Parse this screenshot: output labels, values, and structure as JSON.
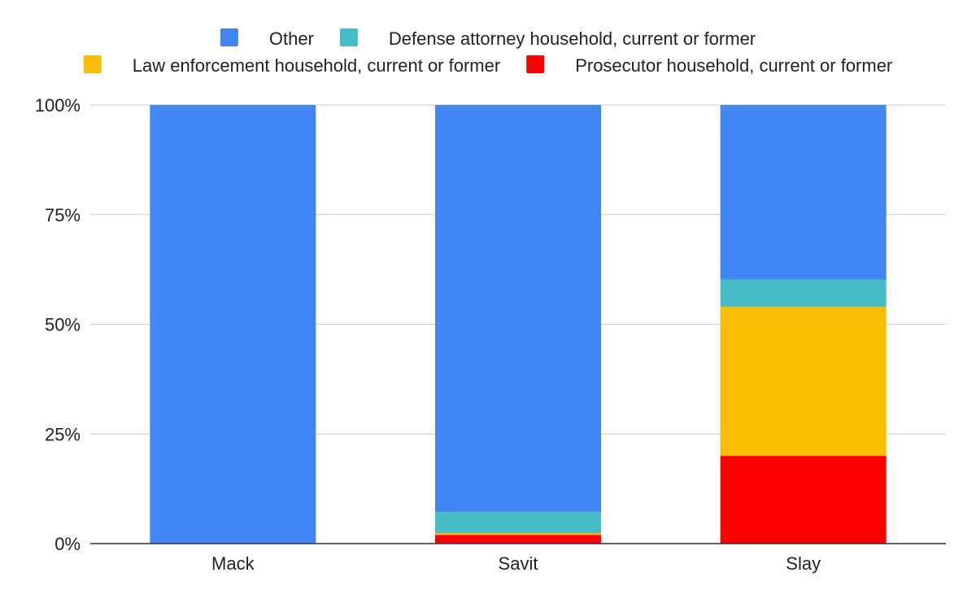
{
  "chart_data": {
    "type": "bar",
    "stacked": true,
    "normalized": true,
    "categories": [
      "Mack",
      "Savit",
      "Slay"
    ],
    "series": [
      {
        "name": "Prosecutor household, current or former",
        "color": "#ff0000",
        "values": [
          0,
          2.0,
          20.0
        ]
      },
      {
        "name": "Law enforcement household, current or former",
        "color": "#fbbc04",
        "values": [
          0,
          0.4,
          34.0
        ]
      },
      {
        "name": "Defense attorney household, current or former",
        "color": "#46bdc6",
        "values": [
          0,
          4.8,
          6.2
        ]
      },
      {
        "name": "Other",
        "color": "#4285f4",
        "values": [
          100,
          92.8,
          39.8
        ]
      }
    ],
    "legend_order": [
      "Other",
      "Defense attorney household, current or former",
      "Law enforcement household, current or former",
      "Prosecutor household, current or former"
    ],
    "y_ticks": [
      "0%",
      "25%",
      "50%",
      "75%",
      "100%"
    ],
    "y_tick_values": [
      0,
      25,
      50,
      75,
      100
    ],
    "ylim": [
      0,
      100
    ],
    "title": "",
    "xlabel": "",
    "ylabel": "",
    "grid": true,
    "legend_position": "top"
  }
}
